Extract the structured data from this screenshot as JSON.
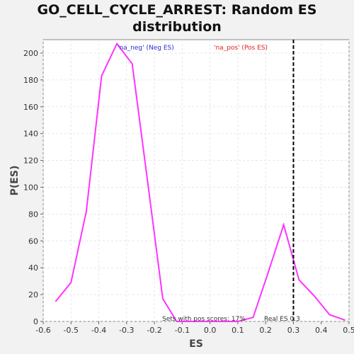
{
  "chart_data": {
    "type": "line",
    "title_line1": "GO_CELL_CYCLE_ARREST: Random ES",
    "title_line2": "distribution",
    "xlabel": "ES",
    "ylabel": "P(ES)",
    "xlim": [
      -0.6,
      0.5
    ],
    "ylim": [
      0,
      210
    ],
    "x_ticks": [
      -0.6,
      -0.5,
      -0.4,
      -0.3,
      -0.2,
      -0.1,
      0.0,
      0.1,
      0.2,
      0.3,
      0.4,
      0.5
    ],
    "x_tick_labels": [
      "-0.6",
      "-0.5",
      "-0.4",
      "-0.3",
      "-0.2",
      "-0.1",
      "0.0",
      "0.1",
      "0.2",
      "0.3",
      "0.4",
      "0.5"
    ],
    "y_ticks": [
      0,
      20,
      40,
      60,
      80,
      100,
      120,
      140,
      160,
      180,
      200
    ],
    "y_tick_labels": [
      "0",
      "20",
      "40",
      "60",
      "80",
      "100",
      "120",
      "140",
      "160",
      "180",
      "200"
    ],
    "grid": true,
    "series": [
      {
        "color": "#ff33ff",
        "x": [
          -0.555,
          -0.5,
          -0.445,
          -0.39,
          -0.335,
          -0.28,
          -0.225,
          -0.17,
          -0.12,
          -0.065,
          -0.01,
          0.045,
          0.1,
          0.155,
          0.21,
          0.265,
          0.32,
          0.375,
          0.43,
          0.485
        ],
        "y": [
          15,
          29,
          82,
          183,
          207,
          192,
          105,
          17,
          0,
          0,
          0,
          0,
          0,
          3,
          37,
          72,
          31,
          19,
          5,
          1
        ]
      }
    ],
    "real_es": {
      "x": 0.3,
      "color": "#000000"
    },
    "annotations": {
      "neg": "'na_neg' (Neg ES)",
      "pos": "'na_pos' (Pos ES)",
      "sets_pos": "Sets with pos scores: 17%",
      "real_es": "Real ES 0.3"
    }
  }
}
